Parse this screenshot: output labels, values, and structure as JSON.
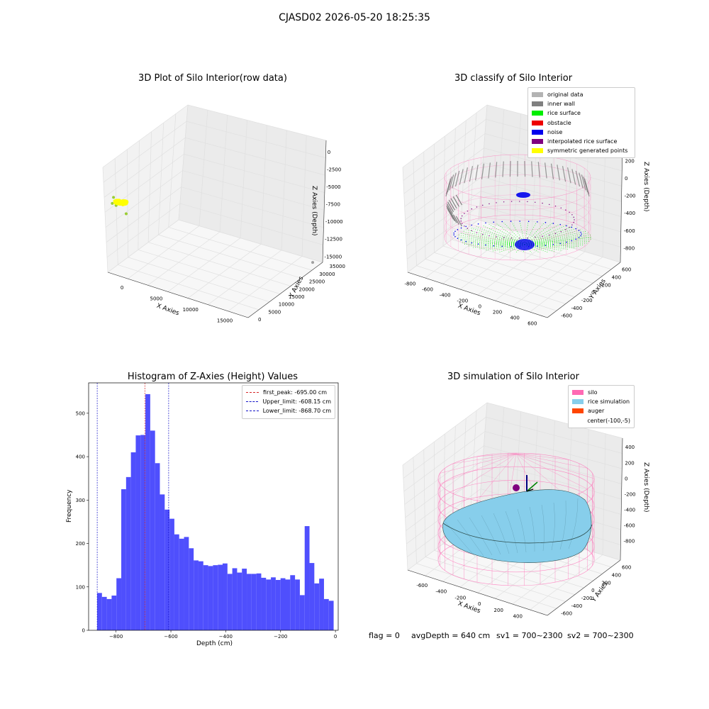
{
  "suptitle": "CJASD02 2026-05-20 18:25:35",
  "colors": {
    "hist_bar": "#4f4ffd",
    "first_peak": "#d62728",
    "limits": "#1414c8",
    "grey": "#b3b3b3",
    "inner_wall": "#808080",
    "rice_surface": "#00ee00",
    "obstacle": "#ee0000",
    "noise": "#0000ee",
    "interp": "#800080",
    "symmetric": "#ffff00",
    "silo": "#ff69b4",
    "rice_sim": "#87ceeb",
    "auger": "#ff4500"
  },
  "chart_data": [
    {
      "type": "scatter",
      "projection": "3d",
      "title": "3D Plot of Silo Interior(row data)",
      "xlabel": "X Axies",
      "ylabel": "Y Axies",
      "zlabel": "Z Axies (Depth)",
      "xticks": [
        "0",
        "5000",
        "10000",
        "15000"
      ],
      "yticks": [
        "0",
        "5000",
        "10000",
        "15000",
        "20000",
        "25000",
        "30000",
        "35000"
      ],
      "zticks": [
        "0",
        "-2500",
        "-5000",
        "-7500",
        "-10000",
        "-12500",
        "-15000"
      ],
      "points": [
        {
          "x": -800,
          "y": -100,
          "z": -4000,
          "color": "#ffee00"
        },
        {
          "x": -500,
          "y": 100,
          "z": -4300,
          "color": "#ffee00"
        },
        {
          "x": -300,
          "y": 0,
          "z": -4600,
          "color": "#ffee00"
        },
        {
          "x": -1600,
          "y": -200,
          "z": -3800,
          "color": "#9acd32"
        },
        {
          "x": -1900,
          "y": 200,
          "z": -5000,
          "color": "#9acd32"
        },
        {
          "x": -1400,
          "y": 400,
          "z": -5200,
          "color": "#9acd32"
        },
        {
          "x": 100,
          "y": 300,
          "z": -6000,
          "color": "#9acd32"
        },
        {
          "x": 17000,
          "y": 35000,
          "z": -16500,
          "color": "#a0a0a0"
        }
      ]
    },
    {
      "type": "scatter",
      "projection": "3d",
      "title": "3D classify of Silo Interior",
      "xlabel": "X Axies",
      "ylabel": "Y Axies",
      "zlabel": "Z Axies (Depth)",
      "xticks": [
        "-800",
        "-600",
        "-400",
        "-200",
        "0",
        "200",
        "400",
        "600"
      ],
      "yticks": [
        "-600",
        "-400",
        "-200",
        "0",
        "200",
        "400",
        "600"
      ],
      "zticks": [
        "200",
        "0",
        "-200",
        "-400",
        "-600",
        "-800"
      ],
      "legend": [
        "original data",
        "inner wall",
        "rice surface",
        "obstacle",
        "noise",
        "interpolated rice surface",
        "symmetric generated points"
      ],
      "legend_colors": [
        "#b3b3b3",
        "#808080",
        "#00ee00",
        "#ee0000",
        "#0000ee",
        "#800080",
        "#ffff00"
      ],
      "silo_radius": 580,
      "silo_top": 0,
      "silo_bottom": -900
    },
    {
      "type": "bar",
      "title": "Histogram of Z-Axies (Height) Values",
      "xlabel": "Depth (cm)",
      "ylabel": "Frequency",
      "xlim": [
        -900,
        10
      ],
      "ylim": [
        0,
        570
      ],
      "xticks": [
        -800,
        -600,
        -400,
        -200,
        0
      ],
      "yticks": [
        0,
        100,
        200,
        300,
        400,
        500
      ],
      "bin_start": -869,
      "bin_width": 17.6,
      "values": [
        86,
        77,
        72,
        80,
        120,
        325,
        353,
        410,
        449,
        450,
        544,
        460,
        385,
        313,
        278,
        257,
        221,
        211,
        215,
        189,
        161,
        159,
        150,
        148,
        150,
        151,
        154,
        130,
        143,
        133,
        142,
        130,
        130,
        131,
        121,
        117,
        122,
        116,
        120,
        117,
        127,
        117,
        81,
        240,
        155,
        108,
        119,
        72,
        68
      ],
      "vlines": [
        {
          "label": "first_peak: -695.00 cm",
          "x": -695.0,
          "color": "#d62728"
        },
        {
          "label": "Upper_limit: -608.15 cm",
          "x": -608.15,
          "color": "#1414c8"
        },
        {
          "label": "Lower_limit: -868.70 cm",
          "x": -868.7,
          "color": "#1414c8"
        }
      ],
      "legend_position": "top-right"
    },
    {
      "type": "surface",
      "projection": "3d",
      "title": "3D simulation of Silo Interior",
      "xlabel": "X Axies",
      "ylabel": "Y Axies",
      "zlabel": "Z Axies (Depth)",
      "xticks": [
        "-600",
        "-400",
        "-200",
        "0",
        "200",
        "400"
      ],
      "yticks": [
        "-600",
        "-400",
        "-200",
        "0",
        "200",
        "400",
        "600"
      ],
      "zticks": [
        "400",
        "200",
        "0",
        "-200",
        "-400",
        "-600",
        "-800"
      ],
      "legend": [
        "silo",
        "rice simulation",
        "auger",
        "center(-100,-5)"
      ],
      "legend_colors": [
        "#ff69b4",
        "#87ceeb",
        "#ff4500",
        ""
      ]
    }
  ],
  "footer": {
    "flag": "flag = 0",
    "avg": "avgDepth = 640 cm",
    "sv1": "sv1 = 700~2300",
    "sv2": "sv2 = 700~2300"
  }
}
